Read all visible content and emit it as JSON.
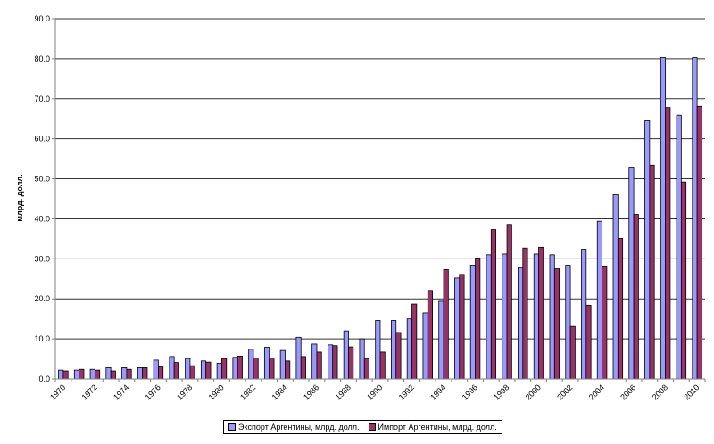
{
  "chart_data": {
    "type": "bar",
    "title": "",
    "xlabel": "",
    "ylabel": "млрд. долл.",
    "ylim": [
      0,
      90
    ],
    "yticks": [
      "0.0",
      "10.0",
      "20.0",
      "30.0",
      "40.0",
      "50.0",
      "60.0",
      "70.0",
      "80.0",
      "90.0"
    ],
    "grid": true,
    "legend_position": "bottom",
    "categories": [
      1970,
      1971,
      1972,
      1973,
      1974,
      1975,
      1976,
      1977,
      1978,
      1979,
      1980,
      1981,
      1982,
      1983,
      1984,
      1985,
      1986,
      1987,
      1988,
      1989,
      1990,
      1991,
      1992,
      1993,
      1994,
      1995,
      1996,
      1997,
      1998,
      1999,
      2000,
      2001,
      2002,
      2003,
      2004,
      2005,
      2006,
      2007,
      2008,
      2009,
      2010
    ],
    "xtick_labels": [
      "1970",
      "1972",
      "1974",
      "1976",
      "1978",
      "1980",
      "1982",
      "1984",
      "1986",
      "1988",
      "1990",
      "1992",
      "1994",
      "1996",
      "1998",
      "2000",
      "2002",
      "2004",
      "2006",
      "2008",
      "2010"
    ],
    "series": [
      {
        "name": "Экспорт Аргентины, млрд. долл.",
        "color": "#9999FF",
        "values": [
          2.2,
          2.2,
          2.4,
          2.8,
          2.8,
          2.8,
          4.7,
          5.6,
          5.1,
          4.5,
          3.9,
          5.4,
          7.4,
          7.9,
          7.1,
          10.4,
          8.7,
          8.5,
          12.0,
          10.0,
          14.6,
          14.6,
          15.0,
          16.5,
          19.4,
          25.2,
          28.4,
          31.0,
          31.2,
          27.8,
          31.2,
          31.0,
          28.4,
          32.4,
          39.4,
          46.0,
          52.9,
          64.5,
          80.3,
          65.9,
          80.3
        ]
      },
      {
        "name": "Импорт Аргентины, млрд. долл.",
        "color": "#993366",
        "values": [
          2.0,
          2.4,
          2.2,
          2.0,
          2.4,
          2.8,
          3.0,
          4.1,
          3.3,
          4.2,
          5.1,
          5.7,
          5.2,
          5.2,
          4.5,
          5.6,
          6.7,
          8.3,
          8.0,
          5.0,
          6.7,
          11.6,
          18.7,
          22.1,
          27.3,
          26.1,
          30.2,
          37.3,
          38.6,
          32.7,
          32.9,
          27.5,
          13.1,
          18.4,
          28.2,
          35.1,
          41.1,
          53.4,
          67.8,
          49.2,
          68.1
        ]
      }
    ]
  }
}
